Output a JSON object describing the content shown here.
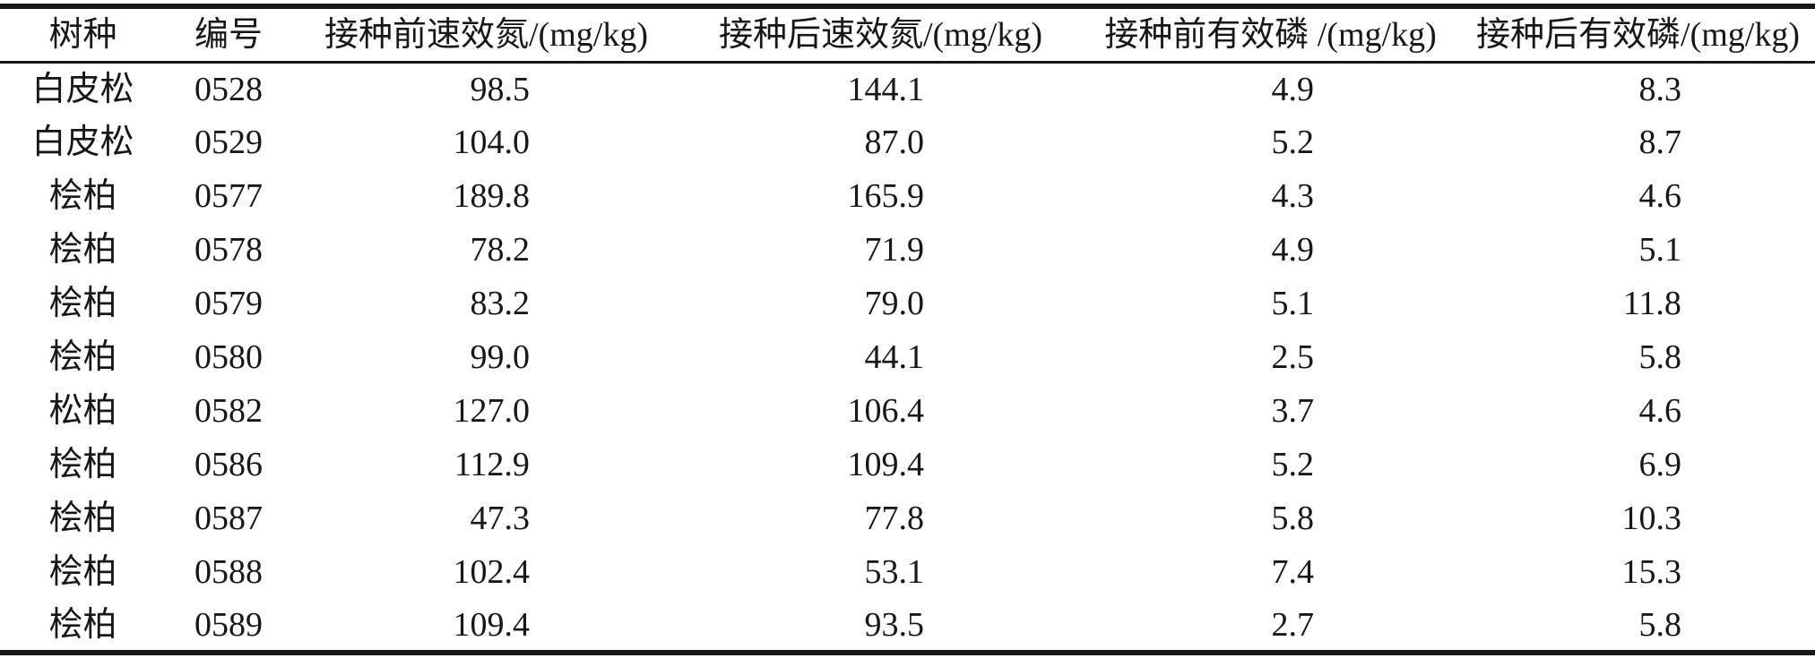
{
  "page": {
    "background": "#ffffff",
    "text_color": "#171717",
    "rule_color": "#171717"
  },
  "table": {
    "columns": [
      {
        "label": "树种"
      },
      {
        "label": "编号"
      },
      {
        "label": "接种前速效氮/(mg/kg)"
      },
      {
        "label": "接种后速效氮/(mg/kg)"
      },
      {
        "label": "接种前有效磷 /(mg/kg)"
      },
      {
        "label": "接种后有效磷/(mg/kg)"
      }
    ],
    "rows": [
      [
        "白皮松",
        "0528",
        "98.5",
        "144.1",
        "4.9",
        "8.3"
      ],
      [
        "白皮松",
        "0529",
        "104.0",
        "87.0",
        "5.2",
        "8.7"
      ],
      [
        "桧柏",
        "0577",
        "189.8",
        "165.9",
        "4.3",
        "4.6"
      ],
      [
        "桧柏",
        "0578",
        "78.2",
        "71.9",
        "4.9",
        "5.1"
      ],
      [
        "桧柏",
        "0579",
        "83.2",
        "79.0",
        "5.1",
        "11.8"
      ],
      [
        "桧柏",
        "0580",
        "99.0",
        "44.1",
        "2.5",
        "5.8"
      ],
      [
        "松柏",
        "0582",
        "127.0",
        "106.4",
        "3.7",
        "4.6"
      ],
      [
        "桧柏",
        "0586",
        "112.9",
        "109.4",
        "5.2",
        "6.9"
      ],
      [
        "桧柏",
        "0587",
        "47.3",
        "77.8",
        "5.8",
        "10.3"
      ],
      [
        "桧柏",
        "0588",
        "102.4",
        "53.1",
        "7.4",
        "15.3"
      ],
      [
        "桧柏",
        "0589",
        "109.4",
        "93.5",
        "2.7",
        "5.8"
      ]
    ]
  },
  "chart_data": {
    "type": "table",
    "columns": [
      "树种",
      "编号",
      "接种前速效氮/(mg/kg)",
      "接种后速效氮/(mg/kg)",
      "接种前有效磷 /(mg/kg)",
      "接种后有效磷/(mg/kg)"
    ],
    "rows": [
      [
        "白皮松",
        "0528",
        98.5,
        144.1,
        4.9,
        8.3
      ],
      [
        "白皮松",
        "0529",
        104.0,
        87.0,
        5.2,
        8.7
      ],
      [
        "桧柏",
        "0577",
        189.8,
        165.9,
        4.3,
        4.6
      ],
      [
        "桧柏",
        "0578",
        78.2,
        71.9,
        4.9,
        5.1
      ],
      [
        "桧柏",
        "0579",
        83.2,
        79.0,
        5.1,
        11.8
      ],
      [
        "桧柏",
        "0580",
        99.0,
        44.1,
        2.5,
        5.8
      ],
      [
        "松柏",
        "0582",
        127.0,
        106.4,
        3.7,
        4.6
      ],
      [
        "桧柏",
        "0586",
        112.9,
        109.4,
        5.2,
        6.9
      ],
      [
        "桧柏",
        "0587",
        47.3,
        77.8,
        5.8,
        10.3
      ],
      [
        "桧柏",
        "0588",
        102.4,
        53.1,
        7.4,
        15.3
      ],
      [
        "桧柏",
        "0589",
        109.4,
        93.5,
        2.7,
        5.8
      ]
    ]
  }
}
